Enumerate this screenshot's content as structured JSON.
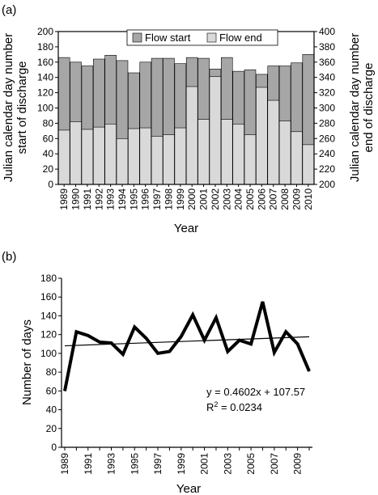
{
  "chart_data": [
    {
      "panel_label": "(a)",
      "type": "bar",
      "categories": [
        "1989",
        "1990",
        "1991",
        "1992",
        "1993",
        "1994",
        "1995",
        "1996",
        "1997",
        "1998",
        "1999",
        "2000",
        "2001",
        "2002",
        "2003",
        "2004",
        "2005",
        "2006",
        "2007",
        "2008",
        "2009",
        "2010"
      ],
      "series": [
        {
          "name": "Flow start",
          "color": "#a6a6a6",
          "axis": "left",
          "values": [
            71,
            82,
            72,
            75,
            79,
            60,
            73,
            74,
            63,
            65,
            74,
            128,
            85,
            141,
            85,
            79,
            65,
            127,
            110,
            83,
            69,
            52
          ]
        },
        {
          "name": "Flow end",
          "color": "#d9d9d9",
          "axis": "right",
          "values": [
            366,
            360,
            355,
            364,
            369,
            362,
            346,
            360,
            365,
            365,
            358,
            366,
            365,
            351,
            366,
            348,
            350,
            344,
            355,
            355,
            359,
            370
          ]
        }
      ],
      "xlabel": "Year",
      "ylabel_left": "Julian calendar day number start of discharge",
      "ylabel_left_lines": [
        "Julian calendar day number",
        "start of discharge"
      ],
      "ylabel_right": "Julian calendar day number end of discharge",
      "ylabel_right_lines": [
        "Julian calendar day number",
        "end of discharge"
      ],
      "ylim_left": [
        0,
        200
      ],
      "yticks_left": [
        "0",
        "20",
        "40",
        "60",
        "80",
        "100",
        "120",
        "140",
        "160",
        "180",
        "200"
      ],
      "ylim_right": [
        200,
        400
      ],
      "yticks_right": [
        "200",
        "220",
        "240",
        "260",
        "280",
        "300",
        "320",
        "340",
        "360",
        "380",
        "400"
      ],
      "legend_position": "top-center",
      "grid": false
    },
    {
      "panel_label": "(b)",
      "type": "line",
      "x": [
        1989,
        1990,
        1991,
        1992,
        1993,
        1994,
        1995,
        1996,
        1997,
        1998,
        1999,
        2000,
        2001,
        2002,
        2003,
        2004,
        2005,
        2006,
        2007,
        2008,
        2009,
        2010
      ],
      "series": [
        {
          "values": [
            60,
            123,
            119,
            112,
            111,
            99,
            128,
            116,
            100,
            102,
            118,
            141,
            114,
            138,
            102,
            114,
            110,
            155,
            101,
            123,
            110,
            81
          ]
        }
      ],
      "trendline": {
        "slope": 0.4602,
        "intercept": 107.57,
        "equation": "y = 0.4602x + 107.57",
        "r2_label": "R",
        "r2_sup": "2",
        "r2_value": " = 0.0234"
      },
      "xlabel": "Year",
      "ylabel": "Number of days",
      "ylim": [
        0,
        180
      ],
      "yticks": [
        "0",
        "20",
        "40",
        "60",
        "80",
        "100",
        "120",
        "140",
        "160",
        "180"
      ],
      "xticks": [
        "1989",
        "1991",
        "1993",
        "1995",
        "1997",
        "1999",
        "2001",
        "2003",
        "2005",
        "2007",
        "2009"
      ],
      "grid": false
    }
  ]
}
